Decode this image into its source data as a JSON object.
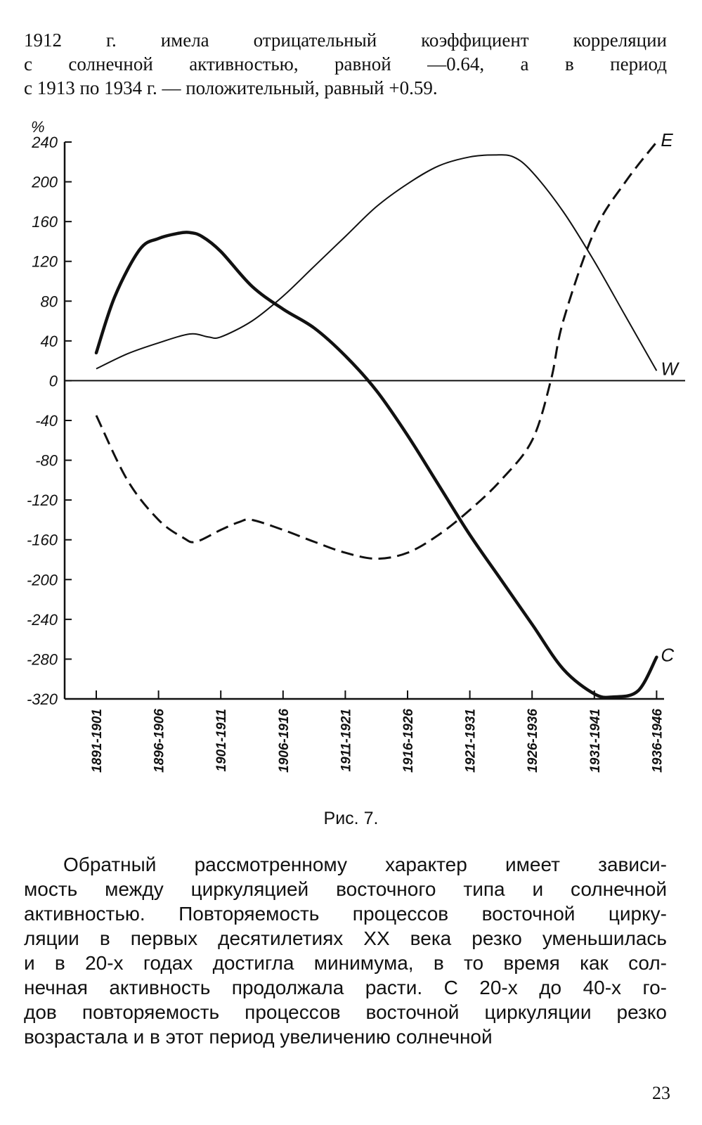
{
  "top_paragraph": {
    "lines": [
      "1912 г. имела отрицательный коэффициент корреляции",
      "с солнечной активностью, равной —0.64, а в период",
      "с 1913 по 1934 г. — положительный, равный +0.59."
    ]
  },
  "chart_data": {
    "type": "line",
    "title": "",
    "ylabel": "%",
    "xlabel": "",
    "ylim": [
      -320,
      240
    ],
    "yticks": [
      "240",
      "200",
      "160",
      "120",
      "80",
      "40",
      "0",
      "-40",
      "-80",
      "-120",
      "-160",
      "-200",
      "-240",
      "-280",
      "-320"
    ],
    "categories": [
      "1891-1901",
      "1896-1906",
      "1901-1911",
      "1906-1916",
      "1911-1921",
      "1916-1926",
      "1921-1931",
      "1926-1936",
      "1931-1941",
      "1936-1946"
    ],
    "grid": false,
    "series": [
      {
        "name": "W",
        "style": "thin-solid",
        "x": [
          0,
          0.5,
          1,
          1.5,
          1.8,
          2,
          2.5,
          3,
          3.5,
          4,
          4.5,
          5,
          5.5,
          6,
          6.4,
          6.7,
          7,
          7.5,
          8,
          8.5,
          9
        ],
        "values": [
          12,
          27,
          38,
          47,
          44,
          44,
          60,
          85,
          115,
          145,
          175,
          198,
          216,
          225,
          227,
          225,
          210,
          170,
          120,
          65,
          10
        ]
      },
      {
        "name": "C",
        "style": "thick-solid",
        "x": [
          0,
          0.3,
          0.7,
          1,
          1.3,
          1.5,
          1.7,
          2,
          2.5,
          3,
          3.5,
          4,
          4.5,
          5,
          5.5,
          6,
          6.5,
          7,
          7.5,
          8,
          8.3,
          8.7,
          9
        ],
        "values": [
          28,
          85,
          132,
          143,
          148,
          149,
          145,
          130,
          95,
          72,
          53,
          25,
          -10,
          -55,
          -105,
          -155,
          -200,
          -245,
          -290,
          -315,
          -318,
          -312,
          -278
        ]
      },
      {
        "name": "E",
        "style": "dashed",
        "x": [
          0,
          0.5,
          1,
          1.4,
          1.6,
          2,
          2.3,
          2.5,
          3,
          3.5,
          4,
          4.5,
          5,
          5.5,
          6,
          6.5,
          7,
          7.3,
          7.5,
          8,
          8.5,
          9
        ],
        "values": [
          -35,
          -100,
          -140,
          -158,
          -162,
          -150,
          -142,
          -140,
          -150,
          -162,
          -173,
          -179,
          -173,
          -155,
          -130,
          -100,
          -60,
          0,
          60,
          150,
          200,
          240
        ]
      }
    ]
  },
  "figure_caption": "Рис. 7.",
  "bottom_paragraph": {
    "lines": [
      "Обратный рассмотренному характер имеет зависи-",
      "мость между циркуляцией восточного типа и солнечной",
      "активностью. Повторяемость процессов восточной цирку-",
      "ляции в первых десятилетиях XX века резко уменьшилась",
      "и в 20-х годах достигла минимума, в то время как сол-",
      "нечная активность продолжала расти. С 20-х до 40-х го-",
      "дов повторяемость процессов восточной циркуляции резко",
      "возрастала и в этот период увеличению солнечной"
    ]
  },
  "page_number": "23"
}
